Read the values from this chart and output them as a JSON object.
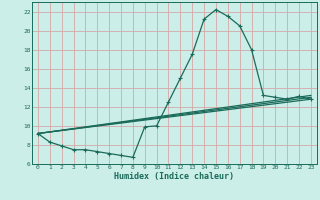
{
  "xlabel": "Humidex (Indice chaleur)",
  "bg_color": "#cceee8",
  "grid_color": "#aad4cc",
  "line_color": "#1a6b5a",
  "xlim": [
    -0.5,
    23.5
  ],
  "ylim": [
    6,
    23
  ],
  "yticks": [
    6,
    8,
    10,
    12,
    14,
    16,
    18,
    20,
    22
  ],
  "xticks": [
    0,
    1,
    2,
    3,
    4,
    5,
    6,
    7,
    8,
    9,
    10,
    11,
    12,
    13,
    14,
    15,
    16,
    17,
    18,
    19,
    20,
    21,
    22,
    23
  ],
  "main_x": [
    0,
    1,
    2,
    3,
    4,
    5,
    6,
    7,
    8,
    9,
    10,
    11,
    12,
    13,
    14,
    15,
    16,
    17,
    18,
    19,
    20,
    21,
    22,
    23
  ],
  "main_y": [
    9.2,
    8.3,
    7.9,
    7.5,
    7.5,
    7.3,
    7.1,
    6.9,
    6.7,
    9.9,
    10.0,
    12.5,
    15.0,
    17.5,
    21.2,
    22.2,
    21.5,
    20.5,
    18.0,
    13.2,
    13.0,
    12.8,
    13.1,
    12.8
  ],
  "line1_x": [
    0,
    23
  ],
  "line1_y": [
    9.2,
    13.2
  ],
  "line2_x": [
    0,
    23
  ],
  "line2_y": [
    9.2,
    13.0
  ],
  "line3_x": [
    0,
    23
  ],
  "line3_y": [
    9.2,
    12.8
  ]
}
